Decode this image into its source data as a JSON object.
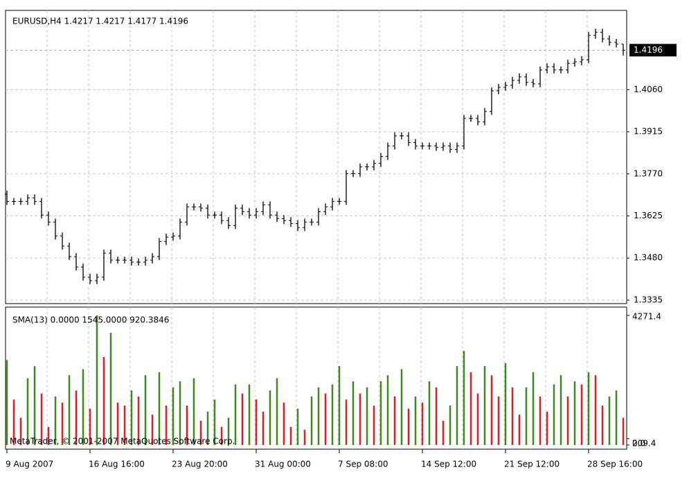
{
  "chart_data": [
    {
      "type": "ohlc",
      "title": "EURUSD,H4  1.4217 1.4217 1.4177 1.4196",
      "copyright": "MetaTrader, © 2001-2007 MetaQuotes Software Corp.",
      "categories": [
        "9 Aug 2007",
        null,
        null,
        null,
        null,
        null,
        null,
        null,
        null,
        null,
        null,
        null,
        "16 Aug 16:00",
        null,
        null,
        null,
        null,
        null,
        null,
        null,
        null,
        null,
        null,
        null,
        "23 Aug 20:00",
        null,
        null,
        null,
        null,
        null,
        null,
        null,
        null,
        null,
        null,
        null,
        "31 Aug 00:00",
        null,
        null,
        null,
        null,
        null,
        null,
        null,
        null,
        null,
        null,
        null,
        "7 Sep 08:00",
        null,
        null,
        null,
        null,
        null,
        null,
        null,
        null,
        null,
        null,
        null,
        "14 Sep 12:00",
        null,
        null,
        null,
        null,
        null,
        null,
        null,
        null,
        null,
        null,
        null,
        "21 Sep 12:00",
        null,
        null,
        null,
        null,
        null,
        null,
        null,
        null,
        null,
        null,
        null,
        "28 Sep 16:00",
        null,
        null,
        null,
        null,
        null
      ],
      "open": [
        1.37,
        1.3675,
        1.3675,
        1.3675,
        1.3687,
        1.3675,
        1.3628,
        1.3604,
        1.3556,
        1.3521,
        1.3485,
        1.3449,
        1.3414,
        1.3402,
        1.3414,
        1.3497,
        1.3473,
        1.3473,
        1.3473,
        1.3466,
        1.3466,
        1.3473,
        1.3485,
        1.3537,
        1.3552,
        1.3556,
        1.3604,
        1.3656,
        1.3656,
        1.3652,
        1.3628,
        1.3628,
        1.3609,
        1.3592,
        1.3652,
        1.364,
        1.3628,
        1.364,
        1.3663,
        1.3628,
        1.3616,
        1.3609,
        1.3599,
        1.3585,
        1.3604,
        1.3604,
        1.364,
        1.3656,
        1.3675,
        1.3675,
        1.3771,
        1.3771,
        1.3794,
        1.3794,
        1.3806,
        1.383,
        1.3866,
        1.3901,
        1.3901,
        1.3878,
        1.3866,
        1.3866,
        1.3866,
        1.3861,
        1.3866,
        1.3854,
        1.3866,
        1.3961,
        1.3961,
        1.3949,
        1.3985,
        1.4056,
        1.4068,
        1.4075,
        1.4092,
        1.4104,
        1.4085,
        1.408,
        1.4128,
        1.4139,
        1.4128,
        1.4128,
        1.4151,
        1.4156,
        1.4163,
        1.4247,
        1.4258,
        1.4235,
        1.4223,
        1.4217
      ],
      "high": [
        1.3712,
        1.3687,
        1.3687,
        1.3699,
        1.3699,
        1.3687,
        1.364,
        1.3616,
        1.3568,
        1.3533,
        1.3497,
        1.3461,
        1.3426,
        1.3426,
        1.3509,
        1.3509,
        1.3485,
        1.3485,
        1.3485,
        1.3478,
        1.3485,
        1.3497,
        1.3549,
        1.3564,
        1.3568,
        1.3616,
        1.3668,
        1.3668,
        1.3668,
        1.3664,
        1.364,
        1.364,
        1.3621,
        1.3664,
        1.3664,
        1.3652,
        1.3652,
        1.3675,
        1.3675,
        1.364,
        1.3628,
        1.3621,
        1.3611,
        1.3616,
        1.3616,
        1.3652,
        1.3668,
        1.3687,
        1.3687,
        1.3783,
        1.3783,
        1.3806,
        1.3806,
        1.3818,
        1.3842,
        1.3878,
        1.3913,
        1.3913,
        1.3913,
        1.389,
        1.3878,
        1.3878,
        1.3878,
        1.3878,
        1.3878,
        1.3878,
        1.3973,
        1.3973,
        1.3973,
        1.3997,
        1.4068,
        1.408,
        1.4087,
        1.4104,
        1.4116,
        1.4116,
        1.4097,
        1.414,
        1.4151,
        1.4151,
        1.414,
        1.4163,
        1.4168,
        1.4175,
        1.4259,
        1.427,
        1.427,
        1.4247,
        1.4235,
        1.4217
      ],
      "low": [
        1.3663,
        1.3663,
        1.3663,
        1.3663,
        1.3663,
        1.3616,
        1.3592,
        1.3544,
        1.3509,
        1.3473,
        1.3437,
        1.3402,
        1.339,
        1.339,
        1.3402,
        1.3461,
        1.3461,
        1.3461,
        1.3454,
        1.3454,
        1.3454,
        1.3461,
        1.3473,
        1.3525,
        1.354,
        1.3544,
        1.3592,
        1.3644,
        1.364,
        1.3616,
        1.3616,
        1.3597,
        1.358,
        1.358,
        1.3628,
        1.3616,
        1.3616,
        1.3628,
        1.3616,
        1.3604,
        1.3597,
        1.3587,
        1.3573,
        1.3573,
        1.3592,
        1.3592,
        1.3628,
        1.3644,
        1.3663,
        1.3663,
        1.3759,
        1.3759,
        1.3782,
        1.3782,
        1.3794,
        1.3818,
        1.3854,
        1.3889,
        1.3866,
        1.3854,
        1.3854,
        1.3854,
        1.3849,
        1.3849,
        1.3842,
        1.3842,
        1.3854,
        1.3949,
        1.3937,
        1.3937,
        1.3973,
        1.4044,
        1.4056,
        1.4063,
        1.408,
        1.4073,
        1.4068,
        1.4068,
        1.4116,
        1.4116,
        1.4116,
        1.4116,
        1.4139,
        1.4144,
        1.4151,
        1.4235,
        1.4223,
        1.4211,
        1.4205,
        1.4177
      ],
      "close": [
        1.3675,
        1.3675,
        1.3675,
        1.3687,
        1.3675,
        1.3628,
        1.3604,
        1.3556,
        1.3521,
        1.3485,
        1.3449,
        1.3414,
        1.3402,
        1.3414,
        1.3497,
        1.3473,
        1.3473,
        1.3473,
        1.3466,
        1.3466,
        1.3473,
        1.3485,
        1.3537,
        1.3552,
        1.3556,
        1.3604,
        1.3656,
        1.3656,
        1.3652,
        1.3628,
        1.3628,
        1.3609,
        1.3592,
        1.3652,
        1.364,
        1.3628,
        1.364,
        1.3663,
        1.3628,
        1.3616,
        1.3609,
        1.3599,
        1.3585,
        1.3604,
        1.3604,
        1.364,
        1.3656,
        1.3675,
        1.3675,
        1.3771,
        1.3771,
        1.3794,
        1.3794,
        1.3806,
        1.383,
        1.3866,
        1.3901,
        1.3901,
        1.3878,
        1.3866,
        1.3866,
        1.3866,
        1.3861,
        1.3866,
        1.3854,
        1.3866,
        1.3961,
        1.3961,
        1.3949,
        1.3985,
        1.4056,
        1.4068,
        1.4075,
        1.4092,
        1.4104,
        1.4085,
        1.408,
        1.4128,
        1.4139,
        1.4128,
        1.4128,
        1.4151,
        1.4156,
        1.4163,
        1.4247,
        1.4258,
        1.4235,
        1.4223,
        1.4217,
        1.4196
      ],
      "color": "#000000",
      "last_price": 1.4196,
      "ylim": [
        1.3323,
        1.4333
      ],
      "yticks": [
        {
          "value": 1.3335,
          "label": "1.3335"
        },
        {
          "value": 1.348,
          "label": "1.3480"
        },
        {
          "value": 1.3625,
          "label": "1.3625"
        },
        {
          "value": 1.377,
          "label": "1.3770"
        },
        {
          "value": 1.3915,
          "label": "1.3915"
        },
        {
          "value": 1.406,
          "label": "1.4060"
        }
      ],
      "grid": true
    },
    {
      "type": "volume",
      "title": "SMA(13) 0.0000 1545.0000 920.3846",
      "values": [
        2800,
        1500,
        900,
        2200,
        2600,
        1700,
        600,
        1600,
        1400,
        2300,
        1800,
        2500,
        1200,
        4271,
        2900,
        3700,
        1400,
        1300,
        1800,
        1600,
        2300,
        1000,
        2400,
        1300,
        1900,
        2100,
        1300,
        2200,
        800,
        1100,
        1500,
        600,
        900,
        2000,
        1700,
        2000,
        1500,
        1100,
        1800,
        2200,
        1400,
        600,
        1200,
        500,
        1600,
        1900,
        1700,
        2000,
        2600,
        1500,
        2100,
        1700,
        1900,
        1300,
        2100,
        2300,
        1600,
        2500,
        1200,
        1600,
        1400,
        2100,
        1900,
        800,
        1300,
        2600,
        3100,
        2400,
        1700,
        2600,
        2300,
        1600,
        2700,
        1900,
        1000,
        1900,
        2400,
        1600,
        1100,
        2000,
        2300,
        1600,
        2100,
        2000,
        2400,
        2300,
        1300,
        1600,
        1800,
        900
      ],
      "up_color": "#3c8a1e",
      "down_color": "#e02020",
      "ylim": [
        0,
        4271.4
      ],
      "yticks": [
        {
          "value": 4271.4,
          "label": "4271.4"
        },
        {
          "value": 209.4,
          "label": "209.4"
        },
        {
          "value": 0,
          "label": "0.0"
        }
      ],
      "grid": true
    }
  ]
}
